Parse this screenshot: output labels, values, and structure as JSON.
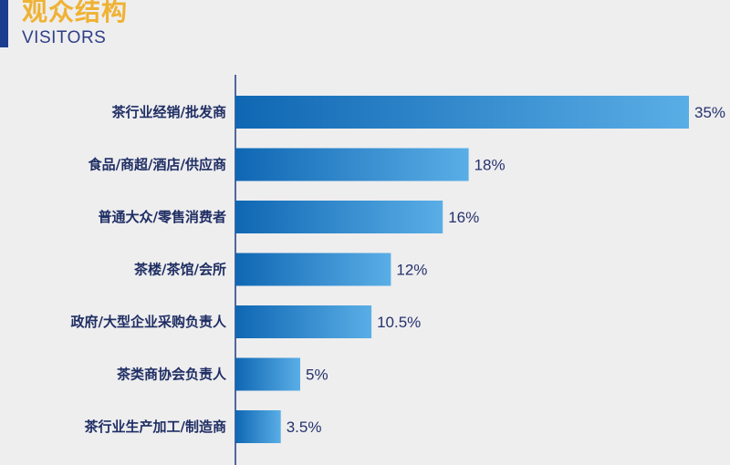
{
  "header": {
    "title_cn": "观众结构",
    "title_en": "VISITORS"
  },
  "colors": {
    "accent": "#1c3d8f",
    "title": "#efb233",
    "bar_start": "#0f67b3",
    "bar_end": "#5aaee6",
    "axis": "#1f3a80"
  },
  "chart_data": {
    "type": "bar",
    "orientation": "horizontal",
    "categories": [
      "茶行业经销/批发商",
      "食品/商超/酒店/供应商",
      "普通大众/零售消费者",
      "茶楼/茶馆/会所",
      "政府/大型企业采购负责人",
      "茶类商协会负责人",
      "茶行业生产加工/制造商"
    ],
    "values": [
      35,
      18,
      16,
      12,
      10.5,
      5,
      3.5
    ],
    "value_labels": [
      "35%",
      "18%",
      "16%",
      "12%",
      "10.5%",
      "5%",
      "3.5%"
    ],
    "unit": "%",
    "xlim": [
      0,
      35
    ],
    "grid": false
  }
}
